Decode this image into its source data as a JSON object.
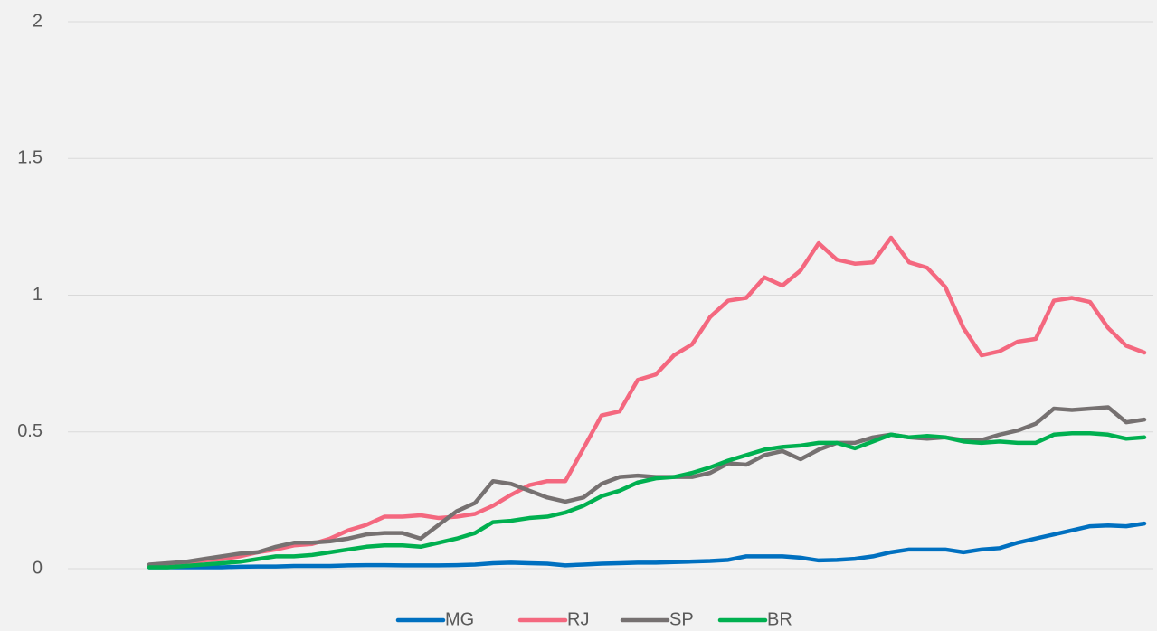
{
  "chart_data": {
    "type": "line",
    "categories": [
      null,
      null,
      null,
      null,
      null,
      null,
      null,
      null,
      null,
      null,
      null,
      null,
      null,
      null,
      null,
      null,
      null,
      null,
      null,
      null,
      null,
      null,
      null,
      null,
      null,
      null,
      null,
      null,
      null,
      null,
      null,
      null,
      null,
      null,
      null,
      null,
      null,
      null,
      null,
      null,
      null,
      null,
      null,
      null,
      null,
      null,
      null,
      null,
      null,
      null,
      null,
      null,
      null,
      null,
      null,
      null
    ],
    "series": [
      {
        "name": "MG",
        "color": "#0070c0",
        "values": [
          0.005,
          0.005,
          0.005,
          0.005,
          0.005,
          0.007,
          0.008,
          0.008,
          0.01,
          0.01,
          0.01,
          0.012,
          0.013,
          0.013,
          0.012,
          0.012,
          0.012,
          0.013,
          0.015,
          0.02,
          0.022,
          0.02,
          0.018,
          0.012,
          0.015,
          0.018,
          0.02,
          0.022,
          0.022,
          0.024,
          0.026,
          0.028,
          0.032,
          0.045,
          0.045,
          0.045,
          0.04,
          0.03,
          0.032,
          0.036,
          0.045,
          0.06,
          0.07,
          0.07,
          0.07,
          0.06,
          0.07,
          0.075,
          0.095,
          0.11,
          0.125,
          0.14,
          0.155,
          0.158,
          0.155,
          0.165
        ]
      },
      {
        "name": "RJ",
        "color": "#f4687f",
        "values": [
          0.01,
          0.015,
          0.02,
          0.03,
          0.035,
          0.045,
          0.06,
          0.07,
          0.085,
          0.09,
          0.11,
          0.14,
          0.16,
          0.19,
          0.19,
          0.195,
          0.185,
          0.19,
          0.2,
          0.23,
          0.27,
          0.305,
          0.32,
          0.32,
          0.44,
          0.56,
          0.575,
          0.69,
          0.71,
          0.78,
          0.82,
          0.92,
          0.98,
          0.99,
          1.065,
          1.035,
          1.09,
          1.19,
          1.13,
          1.115,
          1.12,
          1.21,
          1.12,
          1.1,
          1.03,
          0.88,
          0.78,
          0.795,
          0.83,
          0.84,
          0.98,
          0.99,
          0.975,
          0.88,
          0.815,
          0.79
        ]
      },
      {
        "name": "SP",
        "color": "#767171",
        "values": [
          0.015,
          0.02,
          0.025,
          0.035,
          0.045,
          0.055,
          0.06,
          0.08,
          0.095,
          0.095,
          0.1,
          0.11,
          0.125,
          0.13,
          0.13,
          0.11,
          0.16,
          0.21,
          0.24,
          0.32,
          0.31,
          0.285,
          0.26,
          0.245,
          0.26,
          0.31,
          0.335,
          0.34,
          0.335,
          0.335,
          0.335,
          0.35,
          0.385,
          0.38,
          0.415,
          0.43,
          0.4,
          0.435,
          0.46,
          0.46,
          0.48,
          0.49,
          0.48,
          0.475,
          0.48,
          0.47,
          0.47,
          0.49,
          0.505,
          0.53,
          0.585,
          0.58,
          0.585,
          0.59,
          0.535,
          0.545
        ]
      },
      {
        "name": "BR",
        "color": "#00b050",
        "values": [
          0.005,
          0.005,
          0.01,
          0.015,
          0.02,
          0.025,
          0.035,
          0.045,
          0.045,
          0.05,
          0.06,
          0.07,
          0.08,
          0.085,
          0.085,
          0.08,
          0.095,
          0.11,
          0.13,
          0.17,
          0.175,
          0.185,
          0.19,
          0.205,
          0.23,
          0.265,
          0.285,
          0.315,
          0.33,
          0.335,
          0.35,
          0.37,
          0.395,
          0.415,
          0.435,
          0.445,
          0.45,
          0.46,
          0.46,
          0.44,
          0.465,
          0.49,
          0.48,
          0.485,
          0.48,
          0.465,
          0.46,
          0.465,
          0.46,
          0.46,
          0.49,
          0.495,
          0.495,
          0.49,
          0.475,
          0.48
        ]
      }
    ],
    "ylim": [
      0,
      2
    ],
    "yticks": [
      0,
      0.5,
      1,
      1.5,
      2
    ],
    "grid": true,
    "legend": "bottom"
  }
}
